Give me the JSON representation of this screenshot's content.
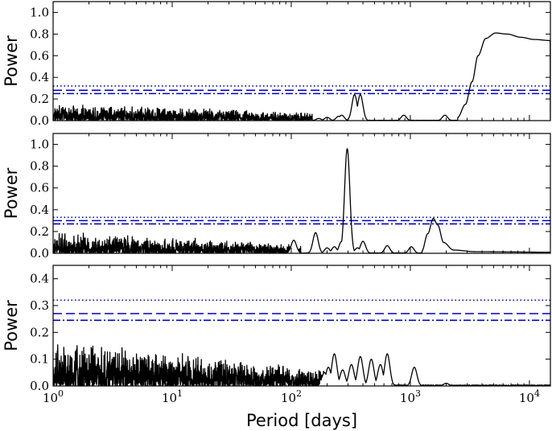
{
  "chart_data": [
    {
      "type": "line",
      "title": "",
      "xlabel": "",
      "ylabel": "Power",
      "xscale": "log",
      "xlim": [
        1,
        15000
      ],
      "ylim": [
        0,
        1.1
      ],
      "yticks": [
        0.0,
        0.2,
        0.4,
        0.6,
        0.8,
        1.0
      ],
      "ytick_labels": [
        "0.0",
        "0.2",
        "0.4",
        "0.6",
        "0.8",
        "1.0"
      ],
      "thresholds": [
        {
          "style": "dotted",
          "color": "#0000cc",
          "value": 0.32
        },
        {
          "style": "dashed",
          "color": "#0000cc",
          "value": 0.28
        },
        {
          "style": "dashdot",
          "color": "#0000cc",
          "value": 0.25
        }
      ],
      "noise": {
        "x_max": 150,
        "amp_low": 0.13,
        "amp_high": 0.06
      },
      "peaks": [
        [
          170,
          0.02
        ],
        [
          200,
          0.03
        ],
        [
          250,
          0.04
        ],
        [
          265,
          0.05
        ],
        [
          340,
          0.24
        ],
        [
          380,
          0.24
        ],
        [
          880,
          0.05
        ],
        [
          1950,
          0.05
        ]
      ],
      "curve": [
        [
          2500,
          0.03
        ],
        [
          2900,
          0.15
        ],
        [
          3300,
          0.36
        ],
        [
          3700,
          0.6
        ],
        [
          4300,
          0.76
        ],
        [
          5200,
          0.81
        ],
        [
          6500,
          0.8
        ],
        [
          8500,
          0.77
        ],
        [
          11000,
          0.75
        ],
        [
          15000,
          0.74
        ]
      ]
    },
    {
      "type": "line",
      "title": "",
      "xlabel": "",
      "ylabel": "Power",
      "xscale": "log",
      "xlim": [
        1,
        15000
      ],
      "ylim": [
        0,
        1.1
      ],
      "yticks": [
        0.0,
        0.2,
        0.4,
        0.6,
        0.8,
        1.0
      ],
      "ytick_labels": [
        "0.0",
        "0.2",
        "0.4",
        "0.6",
        "0.8",
        "1.0"
      ],
      "thresholds": [
        {
          "style": "dotted",
          "color": "#0000cc",
          "value": 0.33
        },
        {
          "style": "dashed",
          "color": "#0000cc",
          "value": 0.3
        },
        {
          "style": "dashdot",
          "color": "#0000cc",
          "value": 0.27
        }
      ],
      "noise": {
        "x_max": 120,
        "amp_low": 0.16,
        "amp_high": 0.07
      },
      "peaks": [
        [
          105,
          0.12
        ],
        [
          160,
          0.19
        ],
        [
          200,
          0.05
        ],
        [
          230,
          0.06
        ],
        [
          265,
          0.11
        ],
        [
          295,
          0.96
        ],
        [
          360,
          0.05
        ],
        [
          400,
          0.11
        ],
        [
          640,
          0.07
        ],
        [
          1020,
          0.06
        ]
      ],
      "curve": [
        [
          1250,
          0.02
        ],
        [
          1400,
          0.18
        ],
        [
          1560,
          0.32
        ],
        [
          1700,
          0.26
        ],
        [
          1900,
          0.1
        ],
        [
          2300,
          0.03
        ],
        [
          3500,
          0.015
        ],
        [
          15000,
          0.01
        ]
      ]
    },
    {
      "type": "line",
      "title": "",
      "xlabel": "Period [days]",
      "ylabel": "Power",
      "xscale": "log",
      "xlim": [
        1,
        15000
      ],
      "ylim": [
        0,
        0.45
      ],
      "yticks": [
        0.0,
        0.1,
        0.2,
        0.3,
        0.4
      ],
      "ytick_labels": [
        "0.0",
        "0.1",
        "0.2",
        "0.3",
        "0.4"
      ],
      "xticks": [
        1,
        10,
        100,
        1000,
        10000
      ],
      "xtick_labels": [
        [
          "10",
          "0"
        ],
        [
          "10",
          "1"
        ],
        [
          "10",
          "2"
        ],
        [
          "10",
          "3"
        ],
        [
          "10",
          "4"
        ]
      ],
      "thresholds": [
        {
          "style": "dotted",
          "color": "#0000cc",
          "value": 0.32
        },
        {
          "style": "dashed",
          "color": "#0000cc",
          "value": 0.27
        },
        {
          "style": "dashdot",
          "color": "#0000cc",
          "value": 0.245
        }
      ],
      "noise": {
        "x_max": 190,
        "amp_low": 0.14,
        "amp_high": 0.05
      },
      "peaks": [
        [
          190,
          0.05
        ],
        [
          205,
          0.07
        ],
        [
          230,
          0.12
        ],
        [
          270,
          0.06
        ],
        [
          320,
          0.08
        ],
        [
          380,
          0.11
        ],
        [
          470,
          0.1
        ],
        [
          560,
          0.08
        ],
        [
          640,
          0.12
        ],
        [
          1080,
          0.07
        ],
        [
          2000,
          0.01
        ]
      ]
    }
  ]
}
